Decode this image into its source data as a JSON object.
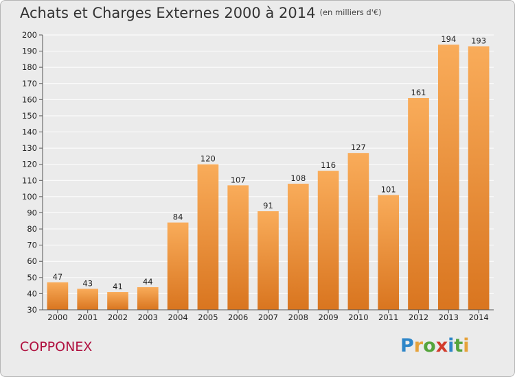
{
  "title": "Achats et Charges Externes 2000 à 2014",
  "unit_label": "(en milliers d'€)",
  "commune": "COPPONEX",
  "logo": {
    "text": "Proxiti",
    "letters": [
      "P",
      "r",
      "o",
      "x",
      "i",
      "t",
      "i"
    ],
    "colors": [
      "#2e86c8",
      "#e6a23a",
      "#55a43c",
      "#d23b2b",
      "#2e86c8",
      "#55a43c",
      "#e6a23a"
    ]
  },
  "colors": {
    "bar_light": "#f9ac5a",
    "bar_dark": "#d9751f",
    "grid": "#ffffff",
    "plot_bg": "#ebebeb",
    "commune": "#b0103f"
  },
  "chart_data": {
    "type": "bar",
    "categories": [
      "2000",
      "2001",
      "2002",
      "2003",
      "2004",
      "2005",
      "2006",
      "2007",
      "2008",
      "2009",
      "2010",
      "2011",
      "2012",
      "2013",
      "2014"
    ],
    "values": [
      47,
      43,
      41,
      44,
      84,
      120,
      107,
      91,
      108,
      116,
      127,
      101,
      161,
      194,
      193
    ],
    "value_labels": [
      "47",
      "43",
      "41",
      "44",
      "84",
      "120",
      "107",
      "91",
      "108",
      "116",
      "127",
      "101",
      "161",
      "194",
      "193"
    ],
    "ylim": [
      30,
      200
    ],
    "yticks": [
      30,
      40,
      50,
      60,
      70,
      80,
      90,
      100,
      110,
      120,
      130,
      140,
      150,
      160,
      170,
      180,
      190,
      200
    ],
    "ytick_labels": [
      "30",
      "40",
      "50",
      "60",
      "70",
      "80",
      "90",
      "100",
      "110",
      "120",
      "130",
      "140",
      "150",
      "160",
      "170",
      "180",
      "190",
      "200"
    ],
    "grid": true
  }
}
